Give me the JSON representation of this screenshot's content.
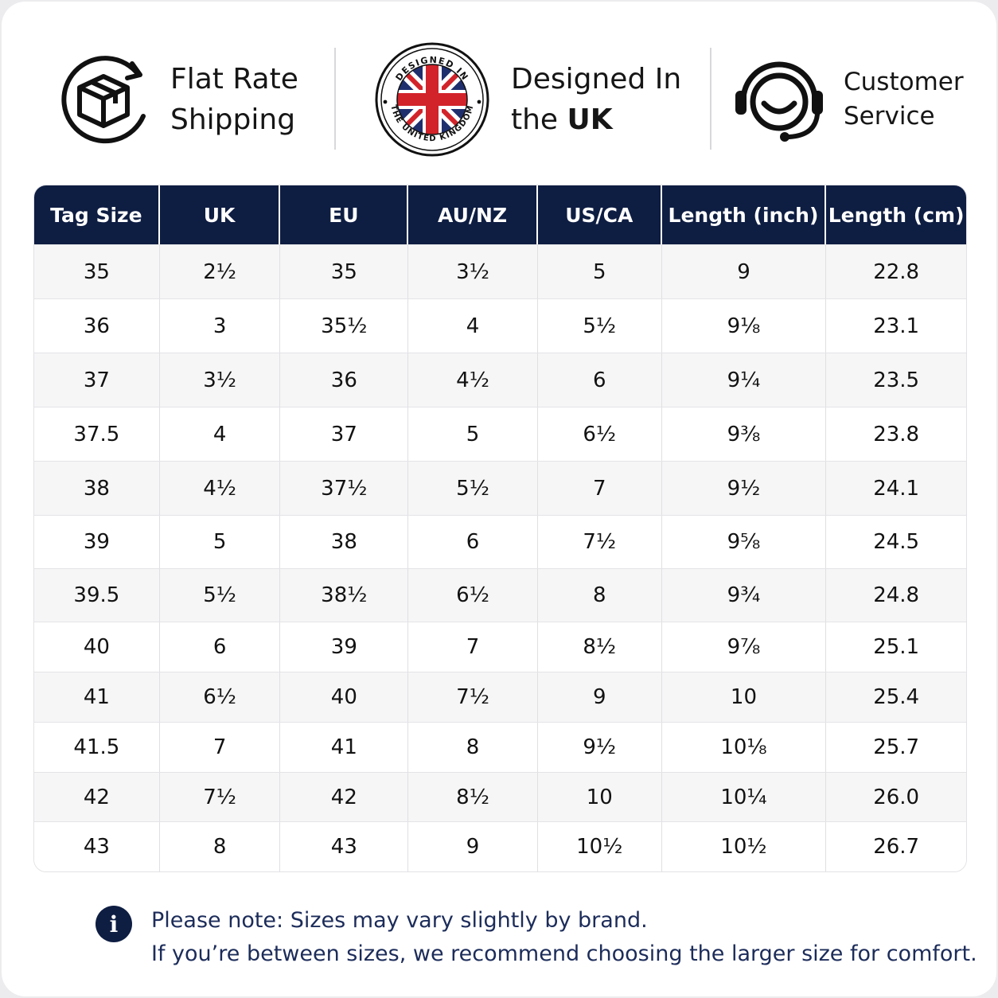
{
  "features": [
    {
      "icon": "box-shipping-icon",
      "line1": "Flat Rate",
      "line2": "Shipping"
    },
    {
      "icon": "uk-flag-badge-icon",
      "line1": "Designed In",
      "line2_prefix": "the ",
      "line2_bold": "UK",
      "badge_top": "DESIGNED IN",
      "badge_bottom": "THE UNITED KINGDOM"
    },
    {
      "icon": "customer-service-headset-icon",
      "line1": "Customer",
      "line2": "Service"
    }
  ],
  "table": {
    "headers": [
      "Tag Size",
      "UK",
      "EU",
      "AU/NZ",
      "US/CA",
      "Length (inch)",
      "Length (cm)"
    ],
    "rows": [
      [
        "35",
        "2½",
        "35",
        "3½",
        "5",
        "9",
        "22.8"
      ],
      [
        "36",
        "3",
        "35½",
        "4",
        "5½",
        "9⅛",
        "23.1"
      ],
      [
        "37",
        "3½",
        "36",
        "4½",
        "6",
        "9¼",
        "23.5"
      ],
      [
        "37.5",
        "4",
        "37",
        "5",
        "6½",
        "9⅜",
        "23.8"
      ],
      [
        "38",
        "4½",
        "37½",
        "5½",
        "7",
        "9½",
        "24.1"
      ],
      [
        "39",
        "5",
        "38",
        "6",
        "7½",
        "9⅝",
        "24.5"
      ],
      [
        "39.5",
        "5½",
        "38½",
        "6½",
        "8",
        "9¾",
        "24.8"
      ],
      [
        "40",
        "6",
        "39",
        "7",
        "8½",
        "9⅞",
        "25.1"
      ],
      [
        "41",
        "6½",
        "40",
        "7½",
        "9",
        "10",
        "25.4"
      ],
      [
        "41.5",
        "7",
        "41",
        "8",
        "9½",
        "10⅛",
        "25.7"
      ],
      [
        "42",
        "7½",
        "42",
        "8½",
        "10",
        "10¼",
        "26.0"
      ],
      [
        "43",
        "8",
        "43",
        "9",
        "10½",
        "10½",
        "26.7"
      ]
    ]
  },
  "note": {
    "icon": "info-icon",
    "icon_glyph": "i",
    "line1": "Please note: Sizes may vary slightly by brand.",
    "line2": "If you’re between sizes, we recommend choosing the larger size for comfort."
  },
  "colors": {
    "navy": "#0e1d42",
    "flag_red": "#d2232a",
    "flag_blue": "#1f2f6e"
  }
}
